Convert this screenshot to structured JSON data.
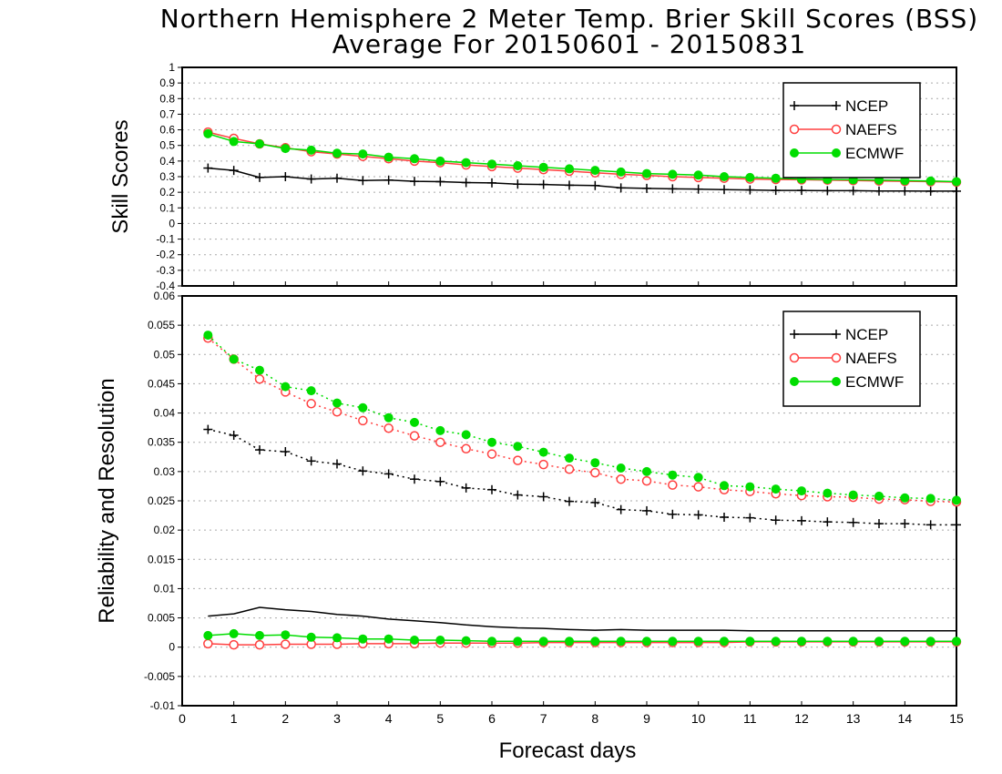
{
  "title_line1": "Northern Hemisphere 2 Meter Temp. Brier Skill Scores (BSS)",
  "title_line2": "Average For 20150601 - 20150831",
  "colors": {
    "NCEP": "#000000",
    "NAEFS": "#ff4040",
    "ECMWF": "#00dd00"
  },
  "chart_data": [
    {
      "type": "line",
      "panel": "top",
      "ylabel": "Skill Scores",
      "xlabel": "",
      "xlim": [
        0,
        15
      ],
      "ylim": [
        -0.4,
        1
      ],
      "xticks": [
        0,
        1,
        2,
        3,
        4,
        5,
        6,
        7,
        8,
        9,
        10,
        11,
        12,
        13,
        14,
        15
      ],
      "yticks": [
        -0.4,
        -0.3,
        -0.2,
        -0.1,
        0,
        0.1,
        0.2,
        0.3,
        0.4,
        0.5,
        0.6,
        0.7,
        0.8,
        0.9,
        1
      ],
      "ytick_labels": [
        "-0.4",
        "-0.3",
        "-0.2",
        "-0.1",
        "0",
        "0.1",
        "0.2",
        "0.3",
        "0.4",
        "0.5",
        "0.6",
        "0.7",
        "0.8",
        "0.9",
        "1"
      ],
      "grid": true,
      "legend_position": "top-right",
      "legend": [
        "NCEP",
        "NAEFS",
        "ECMWF"
      ],
      "x": [
        0.5,
        1,
        1.5,
        2,
        2.5,
        3,
        3.5,
        4,
        4.5,
        5,
        5.5,
        6,
        6.5,
        7,
        7.5,
        8,
        8.5,
        9,
        9.5,
        10,
        10.5,
        11,
        11.5,
        12,
        12.5,
        13,
        13.5,
        14,
        14.5,
        15
      ],
      "series": [
        {
          "name": "NCEP",
          "style": "solid",
          "marker": "plus",
          "values": [
            0.355,
            0.34,
            0.295,
            0.3,
            0.285,
            0.29,
            0.275,
            0.278,
            0.27,
            0.268,
            0.262,
            0.26,
            0.252,
            0.25,
            0.245,
            0.243,
            0.228,
            0.225,
            0.222,
            0.22,
            0.217,
            0.215,
            0.212,
            0.212,
            0.21,
            0.21,
            0.208,
            0.208,
            0.207,
            0.207
          ]
        },
        {
          "name": "NAEFS",
          "style": "solid",
          "marker": "open-circle",
          "values": [
            0.585,
            0.545,
            0.51,
            0.485,
            0.46,
            0.445,
            0.43,
            0.415,
            0.4,
            0.39,
            0.375,
            0.365,
            0.355,
            0.345,
            0.335,
            0.325,
            0.315,
            0.308,
            0.3,
            0.295,
            0.29,
            0.285,
            0.282,
            0.28,
            0.278,
            0.275,
            0.272,
            0.27,
            0.268,
            0.265
          ]
        },
        {
          "name": "ECMWF",
          "style": "solid",
          "marker": "filled-circle",
          "values": [
            0.575,
            0.525,
            0.51,
            0.48,
            0.47,
            0.45,
            0.445,
            0.425,
            0.415,
            0.4,
            0.39,
            0.38,
            0.37,
            0.36,
            0.35,
            0.34,
            0.33,
            0.32,
            0.315,
            0.31,
            0.3,
            0.295,
            0.29,
            0.285,
            0.282,
            0.28,
            0.278,
            0.275,
            0.272,
            0.268
          ]
        }
      ]
    },
    {
      "type": "line",
      "panel": "bottom",
      "ylabel": "Reliability and Resolution",
      "xlabel": "Forecast days",
      "xlim": [
        0,
        15
      ],
      "ylim": [
        -0.01,
        0.06
      ],
      "xticks": [
        0,
        1,
        2,
        3,
        4,
        5,
        6,
        7,
        8,
        9,
        10,
        11,
        12,
        13,
        14,
        15
      ],
      "yticks": [
        -0.01,
        -0.005,
        0,
        0.005,
        0.01,
        0.015,
        0.02,
        0.025,
        0.03,
        0.035,
        0.04,
        0.045,
        0.05,
        0.055,
        0.06
      ],
      "ytick_labels": [
        "-0.01",
        "-0.005",
        "0",
        "0.005",
        "0.01",
        "0.015",
        "0.02",
        "0.025",
        "0.03",
        "0.035",
        "0.04",
        "0.045",
        "0.05",
        "0.055",
        "0.06"
      ],
      "grid": true,
      "legend_position": "top-right",
      "legend": [
        "NCEP",
        "NAEFS",
        "ECMWF"
      ],
      "x": [
        0.5,
        1,
        1.5,
        2,
        2.5,
        3,
        3.5,
        4,
        4.5,
        5,
        5.5,
        6,
        6.5,
        7,
        7.5,
        8,
        8.5,
        9,
        9.5,
        10,
        10.5,
        11,
        11.5,
        12,
        12.5,
        13,
        13.5,
        14,
        14.5,
        15
      ],
      "series": [
        {
          "name": "NCEP",
          "group": "resolution",
          "style": "dotted",
          "marker": "plus",
          "values": [
            0.0372,
            0.0362,
            0.0337,
            0.0334,
            0.0318,
            0.0313,
            0.0301,
            0.0296,
            0.0287,
            0.0283,
            0.0272,
            0.0269,
            0.026,
            0.0257,
            0.0249,
            0.0247,
            0.0235,
            0.0233,
            0.0227,
            0.0226,
            0.0222,
            0.0221,
            0.0217,
            0.0216,
            0.0214,
            0.0213,
            0.0211,
            0.0211,
            0.0209,
            0.0209
          ]
        },
        {
          "name": "NAEFS",
          "group": "resolution",
          "style": "dotted",
          "marker": "open-circle",
          "values": [
            0.0528,
            0.0492,
            0.0458,
            0.0436,
            0.0416,
            0.0402,
            0.0387,
            0.0374,
            0.0361,
            0.035,
            0.0339,
            0.033,
            0.0319,
            0.0312,
            0.0304,
            0.0298,
            0.0287,
            0.0284,
            0.0277,
            0.0274,
            0.0269,
            0.0266,
            0.0262,
            0.0259,
            0.0257,
            0.0256,
            0.0253,
            0.0252,
            0.0249,
            0.0248
          ]
        },
        {
          "name": "ECMWF",
          "group": "resolution",
          "style": "dotted",
          "marker": "filled-circle",
          "values": [
            0.0533,
            0.0492,
            0.0473,
            0.0445,
            0.0438,
            0.0417,
            0.0409,
            0.0392,
            0.0384,
            0.037,
            0.0363,
            0.035,
            0.0343,
            0.0333,
            0.0323,
            0.0315,
            0.0306,
            0.03,
            0.0294,
            0.029,
            0.0276,
            0.0274,
            0.027,
            0.0267,
            0.0263,
            0.026,
            0.0258,
            0.0255,
            0.0254,
            0.0251
          ]
        },
        {
          "name": "NCEP",
          "group": "reliability",
          "style": "solid",
          "marker": "none",
          "values": [
            0.0053,
            0.0057,
            0.0068,
            0.0064,
            0.0061,
            0.0056,
            0.0053,
            0.0048,
            0.0045,
            0.0042,
            0.0038,
            0.0035,
            0.0033,
            0.0032,
            0.003,
            0.0029,
            0.003,
            0.0029,
            0.0029,
            0.0029,
            0.0029,
            0.0028,
            0.0028,
            0.0028,
            0.0028,
            0.0028,
            0.0028,
            0.0028,
            0.0028,
            0.0028
          ]
        },
        {
          "name": "NAEFS",
          "group": "reliability",
          "style": "solid",
          "marker": "open-circle",
          "values": [
            0.0006,
            0.0004,
            0.0004,
            0.0005,
            0.0005,
            0.0005,
            0.0006,
            0.0006,
            0.0006,
            0.0007,
            0.0007,
            0.0007,
            0.0007,
            0.0008,
            0.0008,
            0.0008,
            0.0008,
            0.0008,
            0.0008,
            0.0008,
            0.0008,
            0.0009,
            0.0009,
            0.0009,
            0.0009,
            0.0009,
            0.0009,
            0.0009,
            0.0009,
            0.0009
          ]
        },
        {
          "name": "ECMWF",
          "group": "reliability",
          "style": "solid",
          "marker": "filled-circle",
          "values": [
            0.002,
            0.0023,
            0.002,
            0.0021,
            0.0017,
            0.0016,
            0.0014,
            0.0014,
            0.0012,
            0.0012,
            0.0011,
            0.001,
            0.001,
            0.001,
            0.001,
            0.001,
            0.001,
            0.001,
            0.001,
            0.001,
            0.001,
            0.001,
            0.001,
            0.001,
            0.001,
            0.001,
            0.001,
            0.001,
            0.001,
            0.001
          ]
        }
      ]
    }
  ]
}
